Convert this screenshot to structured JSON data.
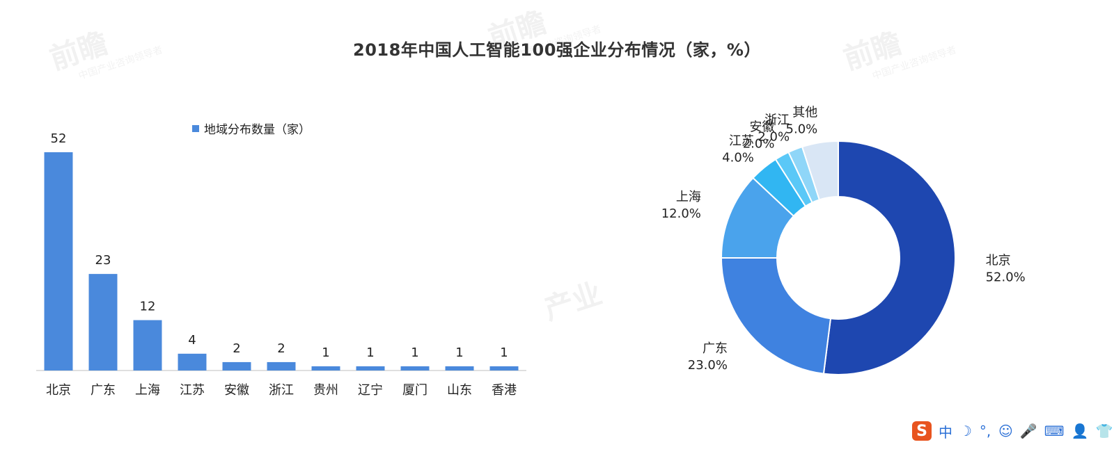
{
  "title": "2018年中国人工智能100强企业分布情况（家，%）",
  "watermark": {
    "brand": "前瞻",
    "sub": "中国产业咨询领导者",
    "mid": "产业"
  },
  "colors": {
    "bar": "#4A89DC",
    "text": "#222222",
    "axis": "#BFBFBF",
    "donut": [
      "#1E47B0",
      "#3F82E0",
      "#4AA3EC",
      "#31B6F2",
      "#5AC8F7",
      "#8FD6F8",
      "#D9E6F5"
    ]
  },
  "chart_data": [
    {
      "type": "bar",
      "legend": "地域分布数量（家）",
      "categories": [
        "北京",
        "广东",
        "上海",
        "江苏",
        "安徽",
        "浙江",
        "贵州",
        "辽宁",
        "厦门",
        "山东",
        "香港"
      ],
      "series": [
        {
          "name": "地域分布数量（家）",
          "values": [
            52,
            23,
            12,
            4,
            2,
            2,
            1,
            1,
            1,
            1,
            1
          ]
        }
      ],
      "ylim": [
        0,
        52
      ],
      "grid": false
    },
    {
      "type": "pie",
      "donut": true,
      "labels": [
        "北京",
        "广东",
        "上海",
        "江苏",
        "安徽",
        "浙江",
        "其他"
      ],
      "values": [
        52.0,
        23.0,
        12.0,
        4.0,
        2.0,
        2.0,
        5.0
      ],
      "value_labels": [
        "52.0%",
        "23.0%",
        "12.0%",
        "4.0%",
        "2.0%",
        "2.0%",
        "5.0%"
      ]
    }
  ],
  "ime_toolbar": {
    "logo": "S",
    "mode": "中",
    "items": [
      "half-width-moon-icon",
      "punctuation-icon",
      "emoji-icon",
      "microphone-icon",
      "keyboard-icon",
      "user-icon",
      "shirt-icon"
    ]
  }
}
